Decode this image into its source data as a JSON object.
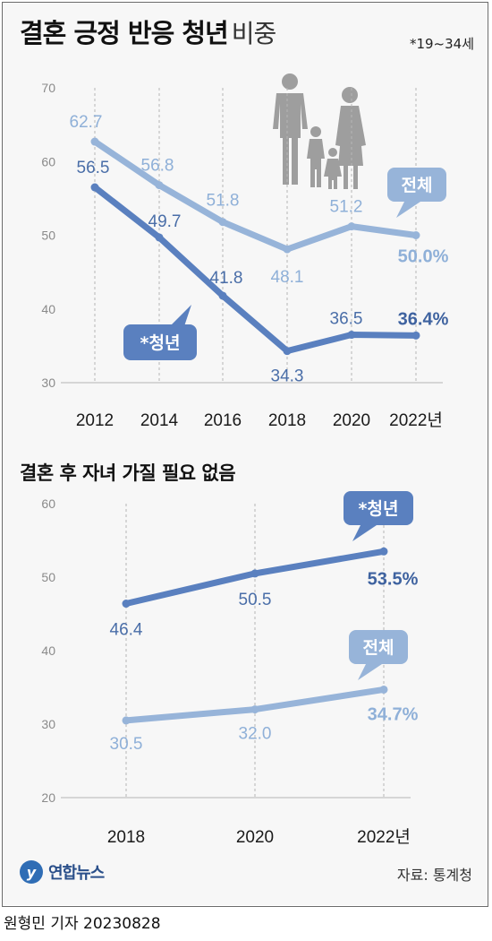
{
  "title": {
    "main": "결혼 긍정 반응 청년",
    "sub": "비중",
    "note": "*19~34세"
  },
  "colors": {
    "youth": "#5a80bf",
    "total": "#97b4d9",
    "youth_label": "#4a6ea8",
    "total_label": "#8fb0d8"
  },
  "chart_data": [
    {
      "type": "line",
      "title": "결혼 긍정 반응 청년 비중",
      "x": [
        "2012",
        "2014",
        "2016",
        "2018",
        "2020",
        "2022년"
      ],
      "ylim": [
        30,
        70
      ],
      "yticks": [
        "70",
        "60",
        "50",
        "40",
        "30"
      ],
      "grid": "vertical dashed",
      "series": [
        {
          "name": "전체",
          "values": [
            62.7,
            56.8,
            51.8,
            48.1,
            51.2,
            50.0
          ],
          "labels": [
            "62.7",
            "56.8",
            "51.8",
            "48.1",
            "51.2",
            "50.0%"
          ]
        },
        {
          "name": "*청년",
          "values": [
            56.5,
            49.7,
            41.8,
            34.3,
            36.5,
            36.4
          ],
          "labels": [
            "56.5",
            "49.7",
            "41.8",
            "34.3",
            "36.5",
            "36.4%"
          ]
        }
      ]
    },
    {
      "type": "line",
      "title": "결혼 후 자녀 가질 필요 없음",
      "x": [
        "2018",
        "2020",
        "2022년"
      ],
      "ylim": [
        20,
        60
      ],
      "yticks": [
        "60",
        "50",
        "40",
        "30",
        "20"
      ],
      "grid": "vertical dashed",
      "series": [
        {
          "name": "*청년",
          "values": [
            46.4,
            50.5,
            53.5
          ],
          "labels": [
            "46.4",
            "50.5",
            "53.5%"
          ]
        },
        {
          "name": "전체",
          "values": [
            30.5,
            32.0,
            34.7
          ],
          "labels": [
            "30.5",
            "32.0",
            "34.7%"
          ]
        }
      ]
    }
  ],
  "footer": {
    "logo_glyph": "y",
    "logo": "연합뉴스",
    "source": "자료: 통계청",
    "credit": "원형민 기자  20230828"
  }
}
